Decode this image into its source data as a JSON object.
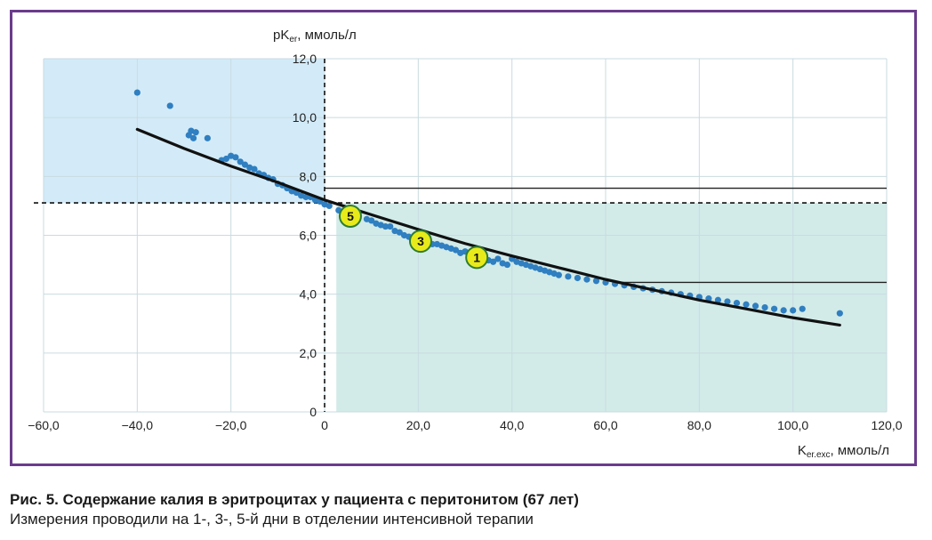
{
  "chart_data": {
    "type": "scatter",
    "title": "",
    "ylabel_main": "pK",
    "ylabel_sub": "er",
    "ylabel_unit": ", ммоль/л",
    "xlabel_main": "K",
    "xlabel_sub": "er.exc",
    "xlabel_unit": ", ммоль/л",
    "xlim": [
      -60,
      120
    ],
    "ylim": [
      0,
      12
    ],
    "x_ticks": [
      "−60,0",
      "−40,0",
      "−20,0",
      "0",
      "20,0",
      "40,0",
      "60,0",
      "80,0",
      "100,0",
      "120,0"
    ],
    "y_ticks": [
      "0",
      "2,0",
      "4,0",
      "6,0",
      "8,0",
      "10,0",
      "12,0"
    ],
    "grid": true,
    "colors": {
      "points": "#2f7fc1",
      "curve": "#111111",
      "upper_left_region": "#d3ebf8",
      "lower_right_region": "#d2ebe9",
      "marker": "#e8ea1a"
    },
    "regions": {
      "upper_left": {
        "x": [
          -60,
          0
        ],
        "y": [
          7.1,
          12
        ]
      },
      "lower_right": {
        "x": [
          2.5,
          120
        ],
        "y": [
          0,
          7.1
        ]
      }
    },
    "dashed_lines": {
      "x": 0,
      "y": 7.1
    },
    "reference_lines": [
      {
        "x_from": 0,
        "x_to": 120,
        "y": 7.6
      },
      {
        "x_from": 62,
        "x_to": 120,
        "y": 4.4
      }
    ],
    "curve": {
      "x": [
        -40,
        -30,
        -20,
        -10,
        0,
        10,
        20,
        30,
        40,
        50,
        60,
        70,
        80,
        90,
        100,
        110
      ],
      "y": [
        9.6,
        8.95,
        8.35,
        7.8,
        7.2,
        6.7,
        6.2,
        5.72,
        5.3,
        4.9,
        4.5,
        4.15,
        3.8,
        3.5,
        3.2,
        2.95
      ]
    },
    "series": [
      {
        "x": [
          -40,
          -33,
          -29,
          -28.5,
          -28,
          -27.5,
          -25,
          -22,
          -21,
          -20,
          -19,
          -18,
          -17,
          -16,
          -15,
          -14,
          -13,
          -12,
          -11,
          -10,
          -9,
          -8,
          -7,
          -6,
          -5,
          -4,
          -3,
          -2,
          -1,
          0,
          1,
          3,
          5,
          7,
          9,
          10,
          11,
          12,
          13,
          14,
          15,
          16,
          17,
          18,
          19,
          20,
          21,
          22,
          23,
          24,
          25,
          26,
          27,
          28,
          29,
          30,
          31,
          33,
          34,
          35,
          36,
          37,
          38,
          39,
          40,
          41,
          42,
          43,
          44,
          45,
          46,
          47,
          48,
          49,
          50,
          52,
          54,
          56,
          58,
          60,
          62,
          64,
          66,
          68,
          70,
          72,
          74,
          76,
          78,
          80,
          82,
          84,
          86,
          88,
          90,
          92,
          94,
          96,
          98,
          100,
          102,
          110
        ],
        "y": [
          10.85,
          10.4,
          9.4,
          9.55,
          9.3,
          9.5,
          9.3,
          8.55,
          8.6,
          8.7,
          8.65,
          8.5,
          8.4,
          8.3,
          8.25,
          8.1,
          8.05,
          7.95,
          7.9,
          7.75,
          7.7,
          7.6,
          7.5,
          7.45,
          7.35,
          7.3,
          7.3,
          7.2,
          7.15,
          7.05,
          7.0,
          6.85,
          6.7,
          6.65,
          6.55,
          6.5,
          6.4,
          6.35,
          6.3,
          6.3,
          6.15,
          6.1,
          6.0,
          5.95,
          5.9,
          5.85,
          5.85,
          5.75,
          5.7,
          5.7,
          5.65,
          5.6,
          5.55,
          5.5,
          5.4,
          5.45,
          5.3,
          5.25,
          5.2,
          5.15,
          5.1,
          5.2,
          5.05,
          5.0,
          5.2,
          5.1,
          5.05,
          5.0,
          4.95,
          4.9,
          4.85,
          4.8,
          4.75,
          4.7,
          4.65,
          4.6,
          4.55,
          4.5,
          4.45,
          4.4,
          4.35,
          4.3,
          4.25,
          4.2,
          4.15,
          4.1,
          4.05,
          4.0,
          3.95,
          3.9,
          3.85,
          3.8,
          3.75,
          3.7,
          3.65,
          3.6,
          3.55,
          3.5,
          3.45,
          3.45,
          3.5,
          3.35
        ]
      }
    ],
    "annotations": [
      {
        "label": "5",
        "x": 5.5,
        "y": 6.65
      },
      {
        "label": "3",
        "x": 20.5,
        "y": 5.8
      },
      {
        "label": "1",
        "x": 32.5,
        "y": 5.25
      }
    ]
  },
  "caption": {
    "title": "Рис. 5. Содержание калия в эритроцитах у пациента с перитонитом (67 лет)",
    "subtitle": "Измерения проводили на 1-, 3-, 5-й дни в отделении интенсивной терапии"
  }
}
